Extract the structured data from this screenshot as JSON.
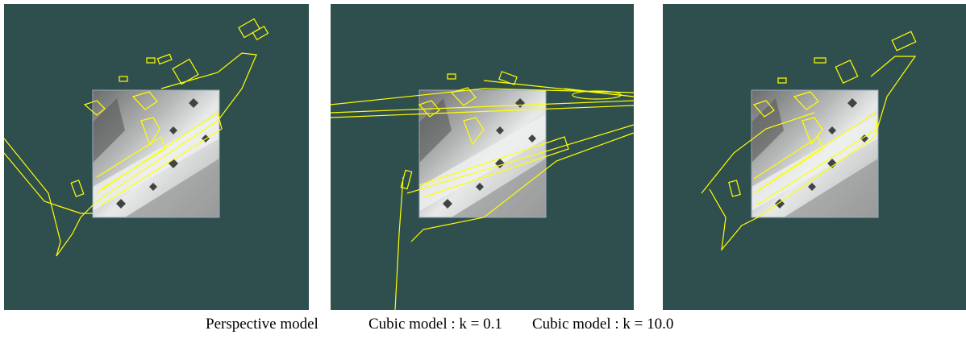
{
  "captions": [
    "Perspective model",
    "Cubic model : k = 0.1",
    "Cubic model : k = 10.0"
  ]
}
